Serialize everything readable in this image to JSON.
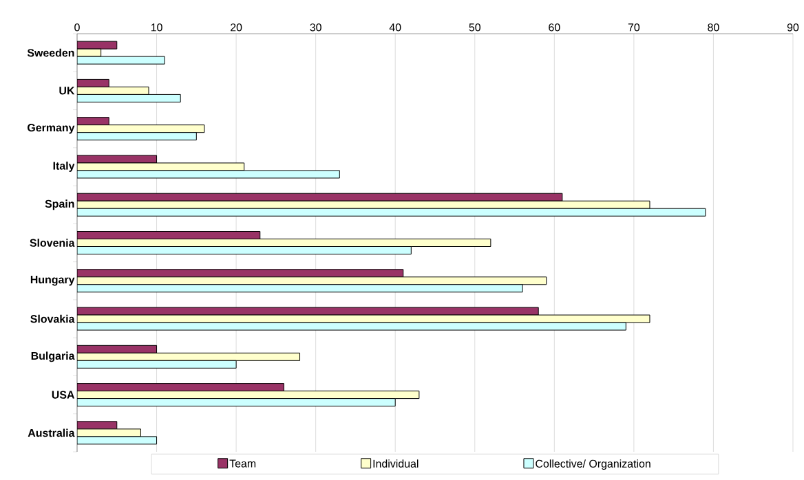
{
  "chart_data": {
    "type": "bar",
    "orientation": "horizontal",
    "categories": [
      "Sweeden",
      "UK",
      "Germany",
      "Italy",
      "Spain",
      "Slovenia",
      "Hungary",
      "Slovakia",
      "Bulgaria",
      "USA",
      "Australia"
    ],
    "series": [
      {
        "name": "Team",
        "color": "#993366",
        "values": [
          5,
          4,
          4,
          10,
          61,
          23,
          41,
          58,
          10,
          26,
          5
        ]
      },
      {
        "name": "Individual",
        "color": "#ffffcc",
        "values": [
          3,
          9,
          16,
          21,
          72,
          52,
          59,
          72,
          28,
          43,
          8
        ]
      },
      {
        "name": "Collective/ Organization",
        "color": "#ccffff",
        "values": [
          11,
          13,
          15,
          33,
          79,
          42,
          56,
          69,
          20,
          40,
          10
        ]
      }
    ],
    "xlim": [
      0,
      90
    ],
    "xticks": [
      0,
      10,
      20,
      30,
      40,
      50,
      60,
      70,
      80,
      90
    ],
    "grid": "x",
    "legend": "bottom"
  }
}
